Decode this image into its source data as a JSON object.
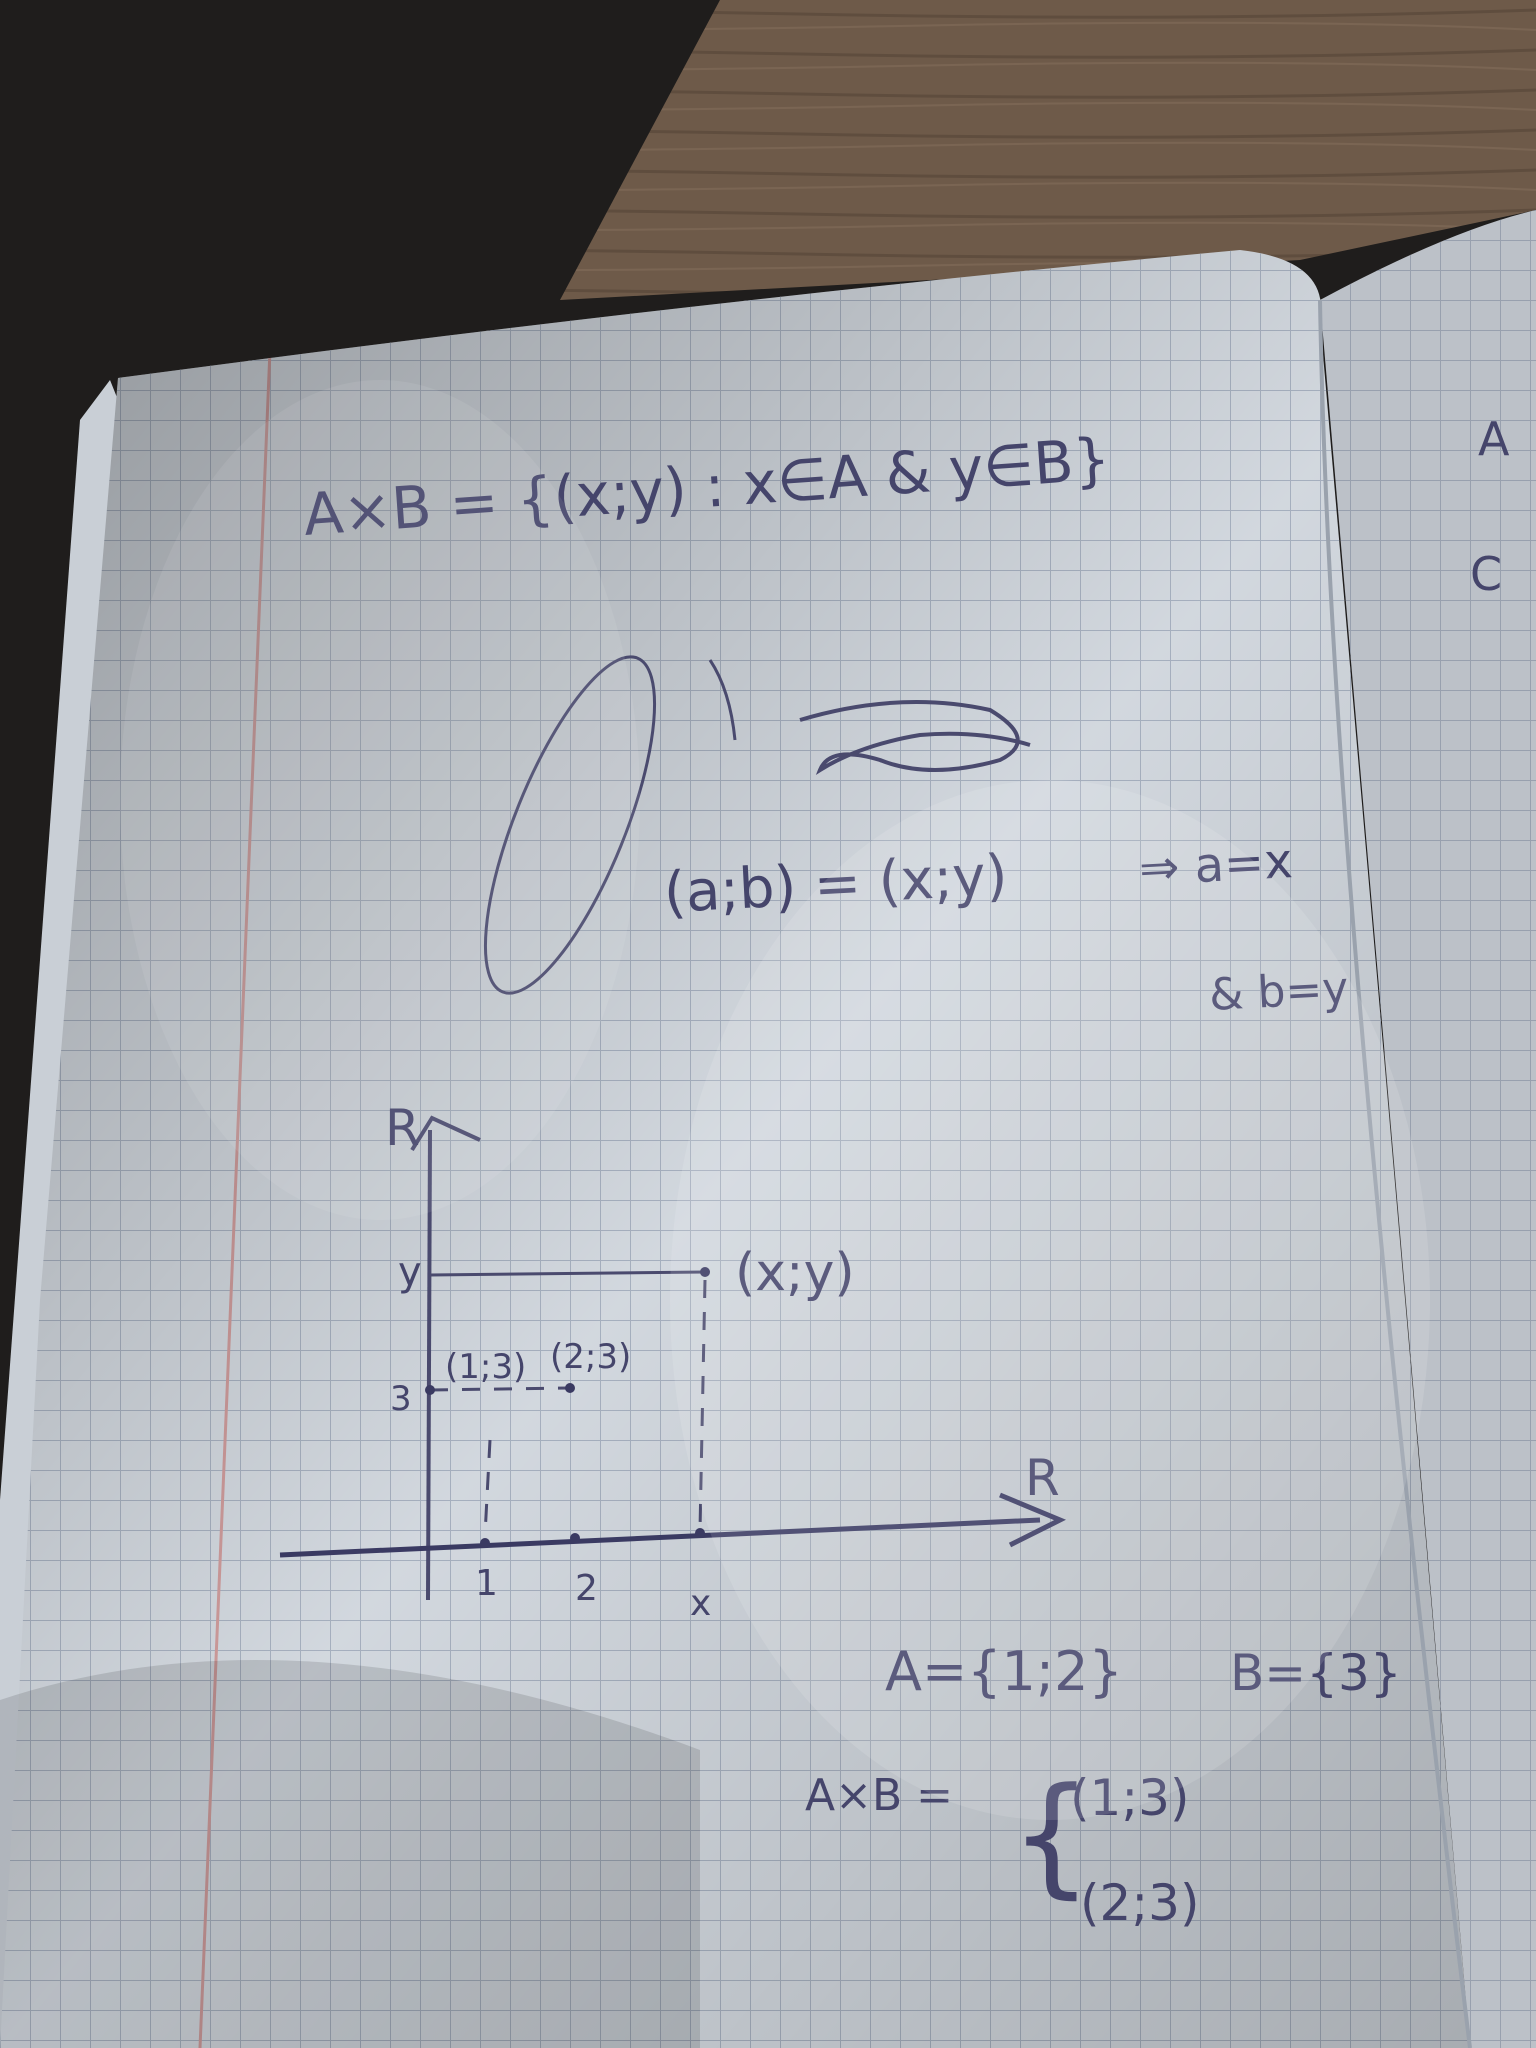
{
  "colors": {
    "background_dark": "#1f1d1c",
    "table_wood": "#6e5a49",
    "paper": "#dde3ea",
    "grid_line": "#a9b3c4",
    "margin_line": "#d8a3a3",
    "pencil": "#4a4a6e",
    "ink": "#3a3a62"
  },
  "notebook": {
    "line1": "A×B = {(x;y) : x∈A & y∈B}",
    "line2": "(a;b) = (x;y)",
    "line2_tail": "⇒ a=x",
    "line3": "& b=y",
    "right_page_letters": [
      "A",
      "C"
    ],
    "diagram": {
      "y_axis_label": "R",
      "x_axis_label": "R",
      "y_tick_y": "y",
      "y_tick_3": "3",
      "x_ticks": [
        "1",
        "2",
        "x"
      ],
      "point_xy": "(x;y)",
      "point_13": "(1;3)",
      "point_23": "(2;3)"
    },
    "set_a": "A={1;2}",
    "set_b": "B={3}",
    "product_lhs": "A×B =",
    "product_items": [
      "(1;3)",
      "(2;3)"
    ]
  }
}
